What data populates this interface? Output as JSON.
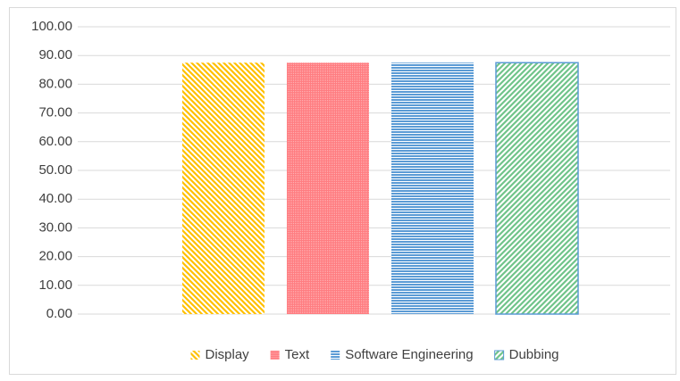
{
  "chart_data": {
    "type": "bar",
    "categories": [
      null
    ],
    "series": [
      {
        "name": "Display",
        "color": "#FFC000",
        "pattern": "diagonal-down",
        "values": [
          87.5
        ]
      },
      {
        "name": "Text",
        "color": "#FF7C80",
        "pattern": "dots",
        "values": [
          87.5
        ]
      },
      {
        "name": "Software Engineering",
        "color": "#5B9BD5",
        "pattern": "horizontal",
        "values": [
          87.5
        ]
      },
      {
        "name": "Dubbing",
        "color": "#70C48A",
        "pattern": "diagonal-up",
        "edgecolor": "#5B9BD5",
        "values": [
          87.5
        ]
      }
    ],
    "ylim": [
      0,
      100
    ],
    "yticks": [
      {
        "value": 0,
        "label": "0.00"
      },
      {
        "value": 10,
        "label": "10.00"
      },
      {
        "value": 20,
        "label": "20.00"
      },
      {
        "value": 30,
        "label": "30.00"
      },
      {
        "value": 40,
        "label": "40.00"
      },
      {
        "value": 50,
        "label": "50.00"
      },
      {
        "value": 60,
        "label": "60.00"
      },
      {
        "value": 70,
        "label": "70.00"
      },
      {
        "value": 80,
        "label": "80.00"
      },
      {
        "value": 90,
        "label": "90.00"
      },
      {
        "value": 100,
        "label": "100.00"
      }
    ],
    "grid": true,
    "legend": "bottom"
  }
}
